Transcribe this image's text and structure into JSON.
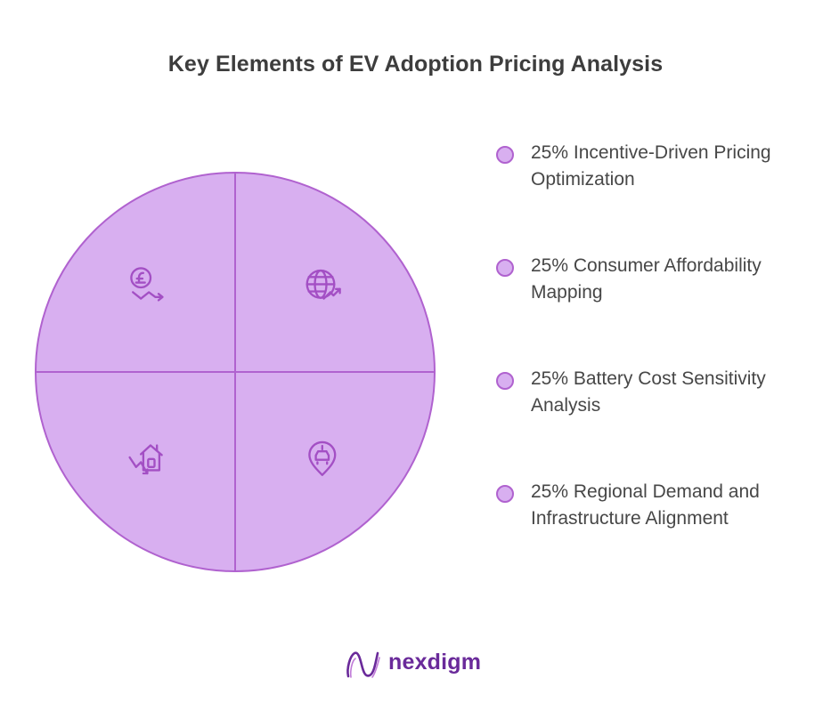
{
  "chart_data": {
    "type": "pie",
    "title": "Key Elements of EV Adoption Pricing Analysis",
    "slices": [
      {
        "label": "Incentive-Driven Pricing Optimization",
        "value": 25,
        "value_label": "25%",
        "icon": "globe-growth-icon"
      },
      {
        "label": "Consumer Affordability Mapping",
        "value": 25,
        "value_label": "25%",
        "icon": "car-location-pin-icon"
      },
      {
        "label": "Battery Cost Sensitivity Analysis",
        "value": 25,
        "value_label": "25%",
        "icon": "house-price-decline-icon"
      },
      {
        "label": "Regional Demand and Infrastructure Alignment",
        "value": 25,
        "value_label": "25%",
        "icon": "currency-decline-icon"
      }
    ],
    "legend_position": "right",
    "colors": {
      "fill": "#d8aff0",
      "stroke": "#b062cf",
      "icon": "#a34fc4"
    }
  },
  "legend": {
    "items": [
      {
        "text": "25% Incentive-Driven Pricing Optimization"
      },
      {
        "text": "25% Consumer Affordability Mapping"
      },
      {
        "text": "25% Battery Cost Sensitivity Analysis"
      },
      {
        "text": "25% Regional Demand and Infrastructure Alignment"
      }
    ]
  },
  "brand": {
    "name": "nexdigm",
    "logo_icon": "nexdigm-logo-icon",
    "color": "#6a2a9a"
  }
}
